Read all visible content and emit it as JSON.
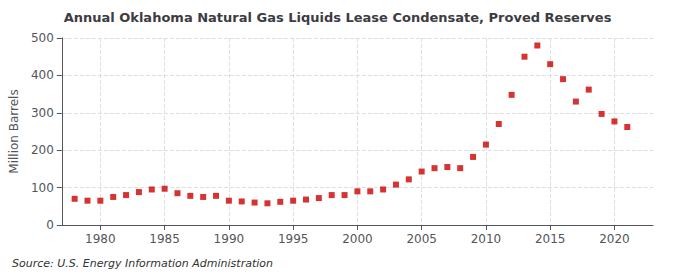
{
  "chart_data": {
    "type": "scatter",
    "title": "Annual Oklahoma Natural Gas Liquids Lease Condensate, Proved Reserves",
    "ylabel": "Million Barrels",
    "annotations": [
      "Source: U.S. Energy Information Administration"
    ],
    "x": [
      1978,
      1979,
      1980,
      1981,
      1982,
      1983,
      1984,
      1985,
      1986,
      1987,
      1988,
      1989,
      1990,
      1991,
      1992,
      1993,
      1994,
      1995,
      1996,
      1997,
      1998,
      1999,
      2000,
      2001,
      2002,
      2003,
      2004,
      2005,
      2006,
      2007,
      2008,
      2009,
      2010,
      2011,
      2012,
      2013,
      2014,
      2015,
      2016,
      2017,
      2018,
      2019,
      2020,
      2021
    ],
    "values": [
      70,
      65,
      65,
      75,
      80,
      88,
      95,
      97,
      85,
      78,
      75,
      78,
      65,
      63,
      60,
      58,
      62,
      65,
      68,
      72,
      80,
      80,
      90,
      90,
      95,
      108,
      122,
      143,
      152,
      155,
      152,
      182,
      215,
      270,
      348,
      450,
      480,
      430,
      390,
      330,
      362,
      297,
      277,
      262
    ],
    "color": "#cc0000",
    "marker": "square",
    "xlim": [
      1977,
      2023
    ],
    "xticks": [
      1980,
      1985,
      1990,
      1995,
      2000,
      2005,
      2010,
      2015,
      2020
    ],
    "ylim": [
      0,
      500
    ],
    "yticks": [
      0,
      100,
      200,
      300,
      400,
      500
    ],
    "grid": true
  }
}
